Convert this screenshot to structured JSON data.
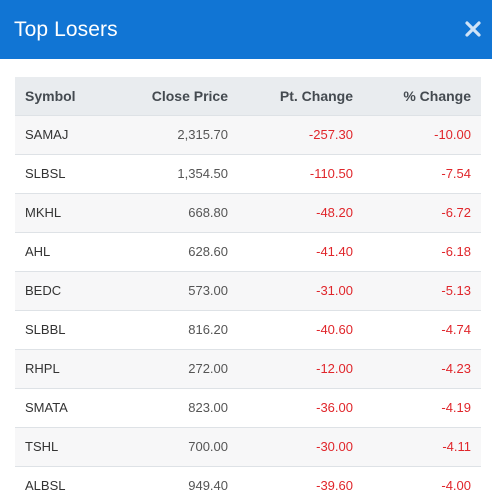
{
  "header": {
    "title": "Top Losers",
    "close_icon": "close-icon",
    "background_color": "#1175d4"
  },
  "table": {
    "columns": [
      "Symbol",
      "Close Price",
      "Pt. Change",
      "% Change"
    ],
    "negative_color": "#e0262b",
    "rows": [
      {
        "symbol": "SAMAJ",
        "close": "2,315.70",
        "pt": "-257.30",
        "pct": "-10.00"
      },
      {
        "symbol": "SLBSL",
        "close": "1,354.50",
        "pt": "-110.50",
        "pct": "-7.54"
      },
      {
        "symbol": "MKHL",
        "close": "668.80",
        "pt": "-48.20",
        "pct": "-6.72"
      },
      {
        "symbol": "AHL",
        "close": "628.60",
        "pt": "-41.40",
        "pct": "-6.18"
      },
      {
        "symbol": "BEDC",
        "close": "573.00",
        "pt": "-31.00",
        "pct": "-5.13"
      },
      {
        "symbol": "SLBBL",
        "close": "816.20",
        "pt": "-40.60",
        "pct": "-4.74"
      },
      {
        "symbol": "RHPL",
        "close": "272.00",
        "pt": "-12.00",
        "pct": "-4.23"
      },
      {
        "symbol": "SMATA",
        "close": "823.00",
        "pt": "-36.00",
        "pct": "-4.19"
      },
      {
        "symbol": "TSHL",
        "close": "700.00",
        "pt": "-30.00",
        "pct": "-4.11"
      },
      {
        "symbol": "ALBSL",
        "close": "949.40",
        "pt": "-39.60",
        "pct": "-4.00"
      }
    ]
  }
}
